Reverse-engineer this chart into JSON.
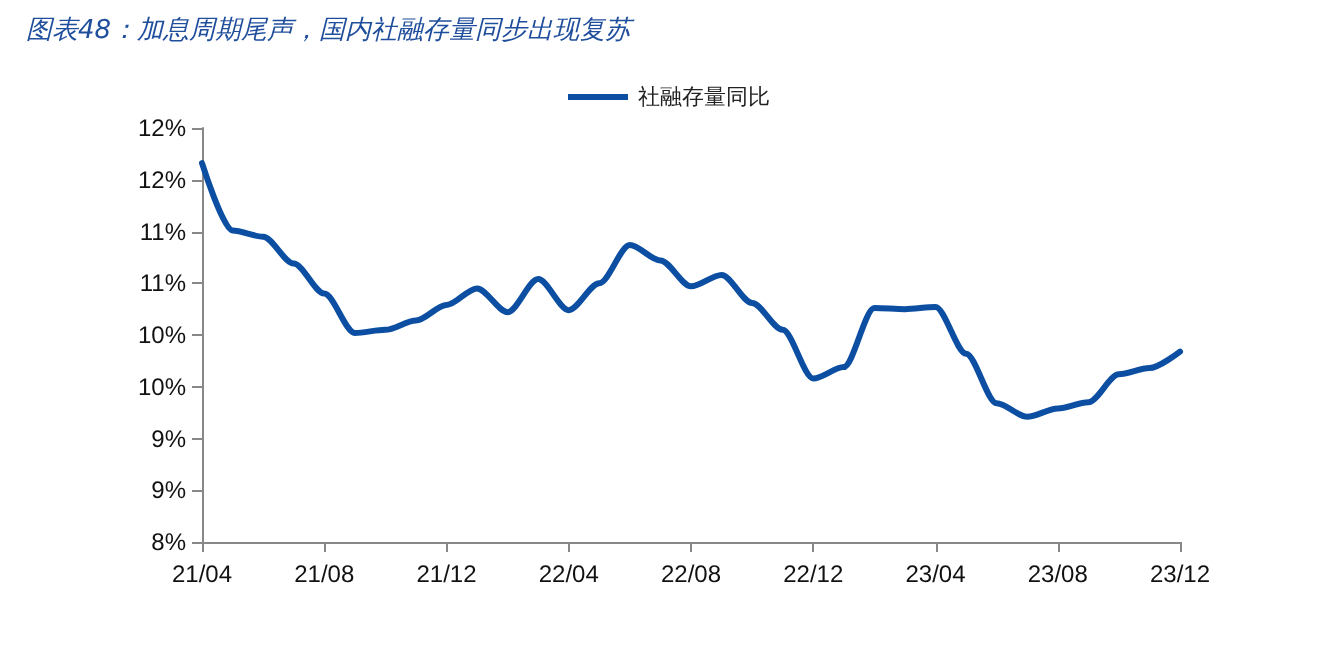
{
  "chart_data": {
    "type": "line",
    "title": "图表48：加息周期尾声，国内社融存量同步出现复苏",
    "categories": [
      "21/04",
      null,
      null,
      null,
      "21/08",
      null,
      null,
      null,
      "21/12",
      null,
      null,
      null,
      "22/04",
      null,
      null,
      null,
      "22/08",
      null,
      null,
      null,
      "22/12",
      null,
      null,
      null,
      "23/04",
      null,
      null,
      null,
      "23/08",
      null,
      null,
      null,
      "23/12"
    ],
    "series": [
      {
        "name": "社融存量同比",
        "color": "#0b4ea2",
        "values": [
          11.66,
          11.01,
          10.95,
          10.69,
          10.4,
          10.02,
          10.05,
          10.14,
          10.29,
          10.45,
          10.22,
          10.54,
          10.24,
          10.5,
          10.87,
          10.72,
          10.47,
          10.58,
          10.31,
          10.05,
          9.58,
          9.69,
          10.26,
          10.25,
          10.27,
          9.82,
          9.34,
          9.21,
          9.29,
          9.35,
          9.62,
          9.68,
          9.84
        ]
      }
    ],
    "ylim": [
      8,
      12
    ],
    "yticks": [
      "8%",
      {
        "value": 8.5,
        "label": "9%"
      },
      {
        "value": 9,
        "label": "9%"
      },
      {
        "value": 9.5,
        "label": "10%"
      },
      {
        "value": 10,
        "label": "10%"
      },
      {
        "value": 10.5,
        "label": "11%"
      },
      {
        "value": 11,
        "label": "11%"
      },
      {
        "value": 11.5,
        "label": "12%"
      },
      {
        "value": 12,
        "label": "12%"
      }
    ],
    "grid": false,
    "legend": "top",
    "marker": "none",
    "line_style": "solid"
  }
}
